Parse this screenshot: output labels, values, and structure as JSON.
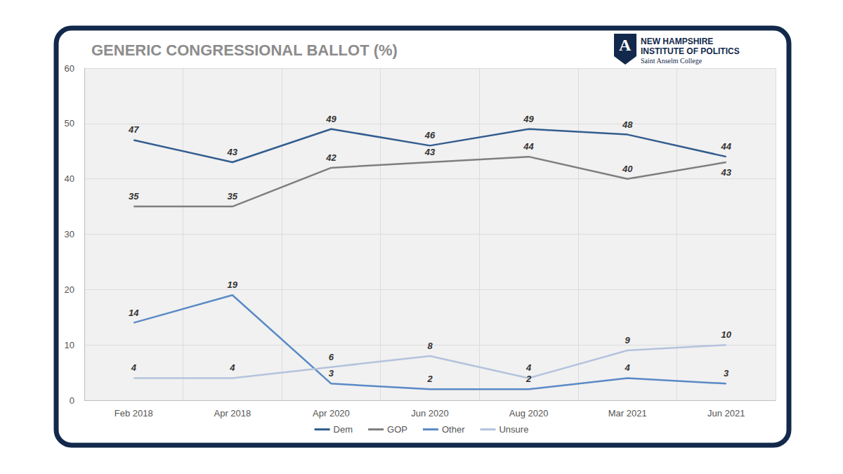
{
  "chart_data": {
    "type": "line",
    "title": "GENERIC CONGRESSIONAL BALLOT (%)",
    "logo_mark": "A",
    "logo_text": [
      "NEW HAMPSHIRE",
      "INSTITUTE OF POLITICS"
    ],
    "logo_subtext": "Saint Anselm College",
    "categories": [
      "Feb 2018",
      "Apr 2018",
      "Apr 2020",
      "Jun 2020",
      "Aug 2020",
      "Mar 2021",
      "Jun 2021"
    ],
    "series": [
      {
        "name": "Dem",
        "color": "#335d8f",
        "values": [
          47,
          43,
          49,
          46,
          49,
          48,
          44
        ]
      },
      {
        "name": "GOP",
        "color": "#7f7f7f",
        "values": [
          35,
          35,
          42,
          43,
          44,
          40,
          43
        ]
      },
      {
        "name": "Other",
        "color": "#5a8ac6",
        "values": [
          14,
          19,
          3,
          2,
          2,
          4,
          3
        ]
      },
      {
        "name": "Unsure",
        "color": "#b4c3dd",
        "values": [
          4,
          4,
          6,
          8,
          4,
          9,
          10
        ]
      }
    ],
    "ylim": [
      0,
      60
    ],
    "yticks": [
      0,
      10,
      20,
      30,
      40,
      50,
      60
    ],
    "grid": true,
    "legend": "bottom",
    "data_labels": true,
    "marker": "none"
  }
}
